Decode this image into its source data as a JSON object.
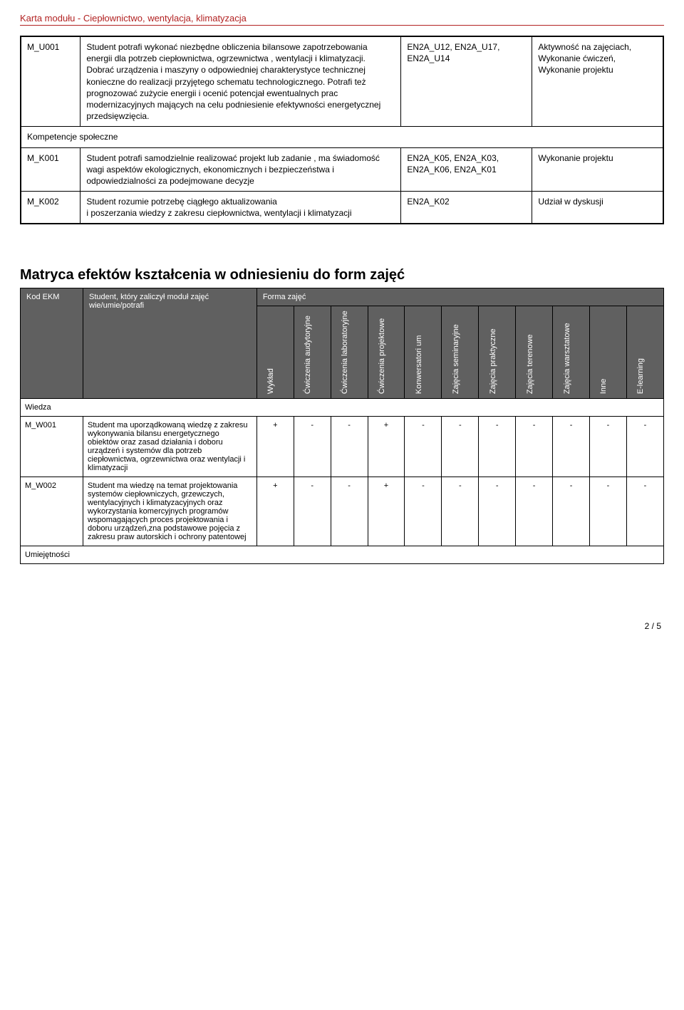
{
  "doc_title": "Karta modułu - Ciepłownictwo, wentylacja, klimatyzacja",
  "outcomes": {
    "rows": [
      {
        "code": "M_U001",
        "desc": "Student potrafi wykonać niezbędne obliczenia bilansowe zapotrzebowania energii dla potrzeb ciepłownictwa, ogrzewnictwa , wentylacji i klimatyzacji. Dobrać urządzenia i maszyny o odpowiedniej charakterystyce technicznej konieczne do realizacji przyjętego schematu technologicznego. Potrafi też prognozować zużycie energii i ocenić potencjał ewentualnych prac modernizacyjnych mających na celu podniesienie efektywności energetycznej przedsięwzięcia.",
        "ref": "EN2A_U12, EN2A_U17, EN2A_U14",
        "ver": "Aktywność na zajęciach, Wykonanie ćwiczeń, Wykonanie projektu"
      },
      {
        "section": "Kompetencje społeczne"
      },
      {
        "code": "M_K001",
        "desc": "Student potrafi samodzielnie realizować projekt lub zadanie , ma świadomość wagi aspektów ekologicznych, ekonomicznych i bezpieczeństwa i odpowiedzialności za podejmowane decyzje",
        "ref": "EN2A_K05, EN2A_K03, EN2A_K06, EN2A_K01",
        "ver": "Wykonanie projektu"
      },
      {
        "code": "M_K002",
        "desc": "Student rozumie potrzebę ciągłego aktualizowania\ni poszerzania wiedzy z zakresu ciepłownictwa, wentylacji i klimatyzacji",
        "ref": "EN2A_K02",
        "ver": "Udział w dyskusji"
      }
    ]
  },
  "matrix": {
    "title": "Matryca efektów kształcenia w odniesieniu do form zajęć",
    "head_code": "Kod EKM",
    "head_desc": "Student, który zaliczył moduł zajęć wie/umie/potrafi",
    "head_form": "Forma zajęć",
    "forms": [
      "Wykład",
      "Ćwiczenia audytoryjne",
      "Ćwiczenia laboratoryjne",
      "Ćwiczenia projektowe",
      "Konwersatori um",
      "Zajęcia seminaryjne",
      "Zajęcia praktyczne",
      "Zajęcia terenowe",
      "Zajęcia warsztatowe",
      "Inne",
      "E-learning"
    ],
    "sections": [
      {
        "label": "Wiedza",
        "rows": [
          {
            "code": "M_W001",
            "desc": "Student ma uporządkowaną wiedzę z zakresu wykonywania bilansu energetycznego obiektów oraz zasad działania i doboru urządzeń i systemów dla potrzeb ciepłownictwa, ogrzewnictwa oraz wentylacji i klimatyzacji",
            "marks": [
              "+",
              "-",
              "-",
              "+",
              "-",
              "-",
              "-",
              "-",
              "-",
              "-",
              "-"
            ]
          },
          {
            "code": "M_W002",
            "desc": "Student ma wiedzę na temat projektowania systemów ciepłowniczych, grzewczych, wentylacyjnych i klimatyzacyjnych  oraz wykorzystania komercyjnych programów wspomagających proces projektowania i doboru urządzeń,zna podstawowe pojęcia z zakresu praw autorskich i ochrony patentowej",
            "marks": [
              "+",
              "-",
              "-",
              "+",
              "-",
              "-",
              "-",
              "-",
              "-",
              "-",
              "-"
            ]
          }
        ]
      },
      {
        "label": "Umiejętności",
        "rows": []
      }
    ]
  },
  "pagenum": "2 / 5"
}
